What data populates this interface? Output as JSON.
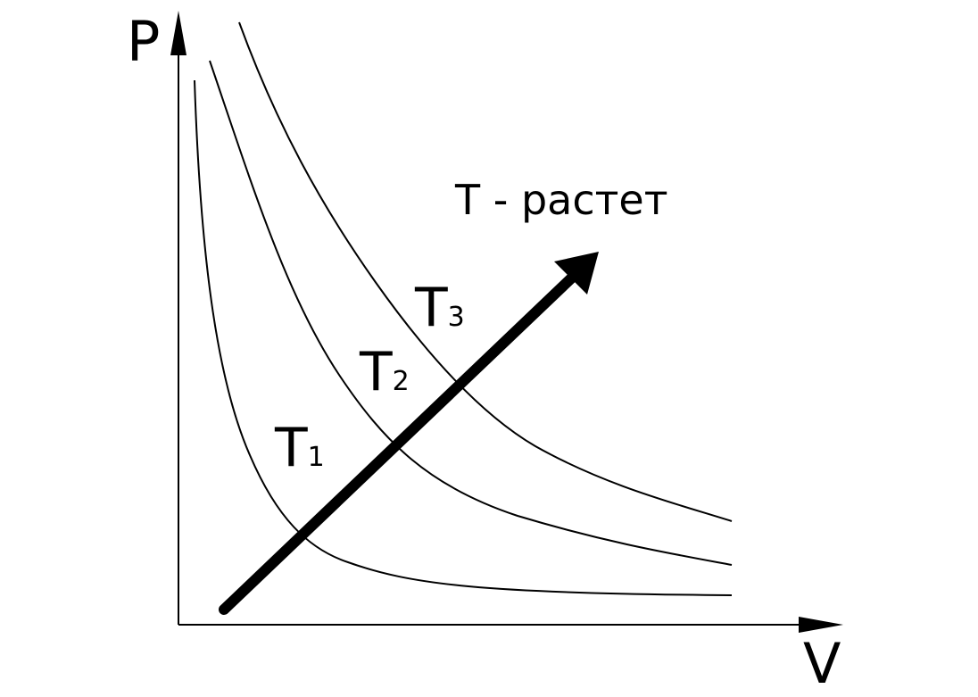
{
  "axes": {
    "y_label": "P",
    "x_label": "V"
  },
  "curves": [
    {
      "label": "T",
      "subscript": "1"
    },
    {
      "label": "T",
      "subscript": "2"
    },
    {
      "label": "T",
      "subscript": "3"
    }
  ],
  "annotation": "T - растет"
}
